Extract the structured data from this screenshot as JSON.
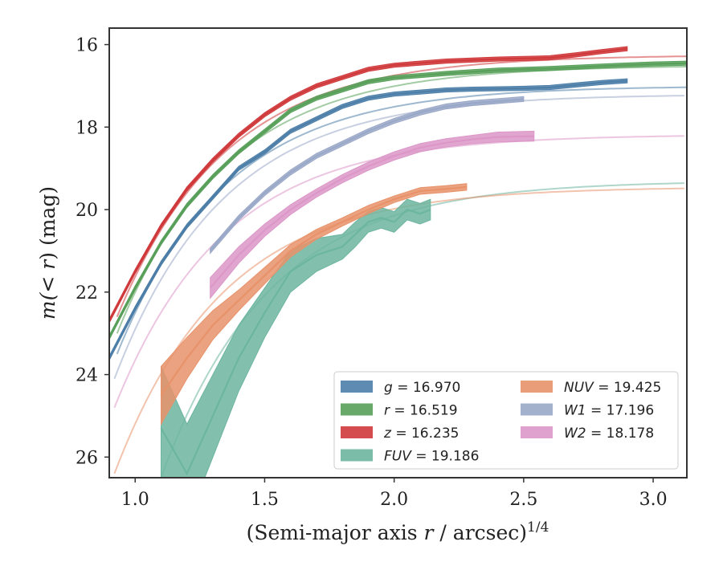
{
  "chart_data": {
    "type": "line",
    "title": "",
    "xlabel": {
      "main": "(Semi-major axis ",
      "var": "r",
      "tail": " / arcsec)",
      "sup": "1/4"
    },
    "ylabel": {
      "pre": "m(",
      "var": "< r",
      "post": ") (mag)"
    },
    "xlim": [
      0.9,
      3.13
    ],
    "ylim": [
      26.5,
      15.6
    ],
    "y_inverted": true,
    "xticks": [
      1.0,
      1.5,
      2.0,
      2.5,
      3.0
    ],
    "xtick_labels": [
      "1.0",
      "1.5",
      "2.0",
      "2.5",
      "3.0"
    ],
    "yticks": [
      16,
      18,
      20,
      22,
      24,
      26
    ],
    "ytick_labels": [
      "16",
      "18",
      "20",
      "22",
      "24",
      "26"
    ],
    "grid": false,
    "legend_position": "lower-right",
    "legend_columns": 2,
    "series": [
      {
        "name": "g = 16.970",
        "label_var": "g",
        "label_value": "= 16.970",
        "color": "#4c7ea8",
        "model_asymptote": 17.0,
        "model_r0": 0.93,
        "model_m0": 23.5,
        "profile_x": [
          0.9,
          1.0,
          1.1,
          1.2,
          1.3,
          1.4,
          1.5,
          1.6,
          1.7,
          1.8,
          1.9,
          2.0,
          2.1,
          2.2,
          2.3,
          2.4,
          2.5,
          2.55,
          2.6,
          2.7,
          2.8,
          2.9
        ],
        "profile_y": [
          23.6,
          22.4,
          21.3,
          20.4,
          19.7,
          19.0,
          18.6,
          18.1,
          17.8,
          17.5,
          17.3,
          17.2,
          17.15,
          17.1,
          17.08,
          17.07,
          17.06,
          17.05,
          17.04,
          16.98,
          16.92,
          16.88
        ],
        "profile_err": 0.05
      },
      {
        "name": "r = 16.519",
        "label_var": "r",
        "label_value": "= 16.519",
        "color": "#58a05a",
        "model_asymptote": 16.5,
        "model_r0": 0.93,
        "model_m0": 23.0,
        "profile_x": [
          0.9,
          1.0,
          1.1,
          1.2,
          1.3,
          1.4,
          1.5,
          1.6,
          1.7,
          1.8,
          1.9,
          2.0,
          2.2,
          2.4,
          2.6,
          2.8,
          3.0,
          3.13
        ],
        "profile_y": [
          23.1,
          21.9,
          20.8,
          19.9,
          19.2,
          18.6,
          18.1,
          17.6,
          17.3,
          17.1,
          16.9,
          16.8,
          16.7,
          16.62,
          16.58,
          16.52,
          16.47,
          16.45
        ],
        "profile_err": 0.05
      },
      {
        "name": "z = 16.235",
        "label_var": "z",
        "label_value": "= 16.235",
        "color": "#d0393b",
        "model_asymptote": 16.25,
        "model_r0": 0.93,
        "model_m0": 22.6,
        "profile_x": [
          0.9,
          1.0,
          1.1,
          1.2,
          1.3,
          1.4,
          1.5,
          1.6,
          1.7,
          1.8,
          1.9,
          2.0,
          2.2,
          2.4,
          2.55,
          2.6,
          2.7,
          2.8,
          2.9
        ],
        "profile_y": [
          22.7,
          21.5,
          20.4,
          19.5,
          18.8,
          18.2,
          17.7,
          17.3,
          17.0,
          16.8,
          16.6,
          16.5,
          16.4,
          16.35,
          16.33,
          16.32,
          16.25,
          16.17,
          16.1
        ],
        "profile_err": 0.05
      },
      {
        "name": "FUV = 19.186",
        "label_var": "FUV",
        "label_value": "= 19.186",
        "color": "#6cb59f",
        "model_asymptote": 19.3,
        "model_r0": 1.1,
        "model_m0": 26.5,
        "profile_x": [
          1.1,
          1.2,
          1.3,
          1.4,
          1.5,
          1.6,
          1.7,
          1.8,
          1.85,
          1.9,
          1.95,
          2.0,
          2.05,
          2.1,
          2.14
        ],
        "profile_y": [
          25.3,
          26.4,
          25.0,
          23.6,
          22.5,
          21.5,
          21.1,
          20.9,
          20.6,
          20.3,
          20.2,
          20.3,
          20.0,
          20.1,
          20.0
        ],
        "profile_err": [
          1.5,
          1.2,
          1.0,
          0.8,
          0.6,
          0.5,
          0.4,
          0.3,
          0.3,
          0.25,
          0.25,
          0.25,
          0.25,
          0.25,
          0.25
        ]
      },
      {
        "name": "NUV = 19.425",
        "label_var": "NUV",
        "label_value": "= 19.425",
        "color": "#e8926a",
        "model_asymptote": 19.45,
        "model_r0": 0.92,
        "model_m0": 26.4,
        "profile_x": [
          1.1,
          1.2,
          1.3,
          1.4,
          1.5,
          1.6,
          1.7,
          1.8,
          1.9,
          2.0,
          2.1,
          2.2,
          2.28
        ],
        "profile_y": [
          24.5,
          23.6,
          22.8,
          22.2,
          21.6,
          21.0,
          20.6,
          20.3,
          20.0,
          19.75,
          19.55,
          19.5,
          19.45
        ],
        "profile_err": [
          0.7,
          0.5,
          0.35,
          0.25,
          0.2,
          0.15,
          0.12,
          0.1,
          0.1,
          0.08,
          0.08,
          0.08,
          0.08
        ]
      },
      {
        "name": "W1 = 17.196",
        "label_var": "W1",
        "label_value": "= 17.196",
        "color": "#9aa8c8",
        "model_asymptote": 17.2,
        "model_r0": 0.92,
        "model_m0": 24.1,
        "profile_x": [
          1.29,
          1.4,
          1.5,
          1.6,
          1.7,
          1.8,
          1.9,
          2.0,
          2.1,
          2.2,
          2.3,
          2.4,
          2.5
        ],
        "profile_y": [
          21.0,
          20.2,
          19.6,
          19.1,
          18.7,
          18.4,
          18.1,
          17.85,
          17.65,
          17.5,
          17.42,
          17.37,
          17.32
        ],
        "profile_err": 0.06
      },
      {
        "name": "W2 = 18.178",
        "label_var": "W2",
        "label_value": "= 18.178",
        "color": "#dc97c8",
        "model_asymptote": 18.18,
        "model_r0": 0.92,
        "model_m0": 24.8,
        "profile_x": [
          1.29,
          1.4,
          1.5,
          1.6,
          1.7,
          1.8,
          1.9,
          2.0,
          2.1,
          2.2,
          2.3,
          2.4,
          2.54
        ],
        "profile_y": [
          21.9,
          21.1,
          20.5,
          20.0,
          19.6,
          19.25,
          18.95,
          18.7,
          18.5,
          18.38,
          18.3,
          18.24,
          18.22
        ],
        "profile_err": [
          0.25,
          0.2,
          0.15,
          0.12,
          0.1,
          0.1,
          0.1,
          0.1,
          0.1,
          0.1,
          0.1,
          0.12,
          0.12
        ]
      }
    ]
  }
}
